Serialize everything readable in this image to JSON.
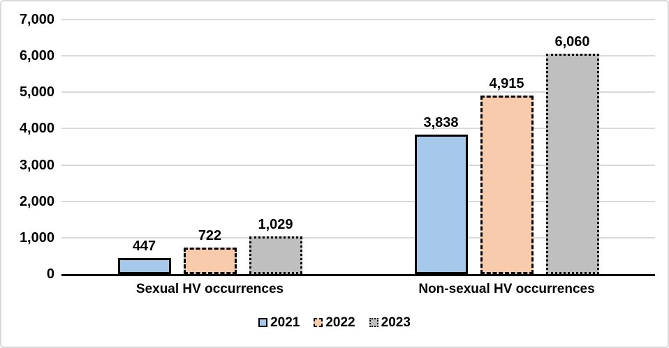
{
  "chart_data": {
    "type": "bar",
    "title": "",
    "categories": [
      "Sexual HV occurrences",
      "Non-sexual HV occurrences"
    ],
    "series": [
      {
        "name": "2021",
        "values": [
          447,
          3838
        ],
        "labels": [
          "447",
          "3,838"
        ],
        "fill": "#a6c9eb",
        "border_style": "solid"
      },
      {
        "name": "2022",
        "values": [
          722,
          4915
        ],
        "labels": [
          "722",
          "4,915"
        ],
        "fill": "#f8cbad",
        "border_style": "dashed"
      },
      {
        "name": "2023",
        "values": [
          1029,
          6060
        ],
        "labels": [
          "1,029",
          "6,060"
        ],
        "fill": "#bfbfbf",
        "border_style": "dotted"
      }
    ],
    "xlabel": "",
    "ylabel": "",
    "ylim": [
      0,
      7000
    ],
    "ytick_step": 1000,
    "yticks": [
      "0",
      "1,000",
      "2,000",
      "3,000",
      "4,000",
      "5,000",
      "6,000",
      "7,000"
    ],
    "grid": true,
    "legend_position": "bottom",
    "colors": {
      "bar_border": "#000000",
      "gridline": "#d9d9d9",
      "axis_line": "#000000",
      "text": "#000000",
      "frame_border": "#d9d9d9",
      "background": "#ffffff"
    }
  },
  "legend": {
    "items": [
      {
        "label": "2021"
      },
      {
        "label": "2022"
      },
      {
        "label": "2023"
      }
    ]
  }
}
